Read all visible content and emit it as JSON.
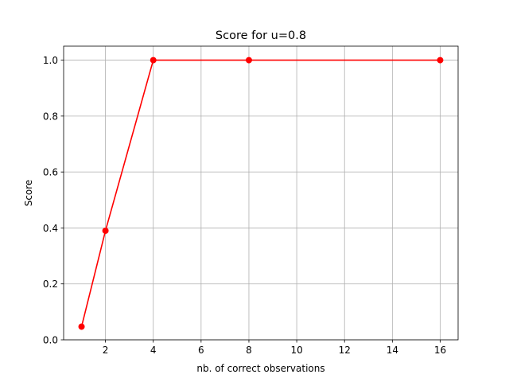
{
  "chart_data": {
    "type": "line",
    "title": "Score for u=0.8",
    "xlabel": "nb. of correct observations",
    "ylabel": "Score",
    "xlim": [
      0.25,
      16.75
    ],
    "ylim": [
      0.0,
      1.05
    ],
    "xticks": [
      2,
      4,
      6,
      8,
      10,
      12,
      14,
      16
    ],
    "xtick_labels": [
      "2",
      "4",
      "6",
      "8",
      "10",
      "12",
      "14",
      "16"
    ],
    "yticks": [
      0.0,
      0.2,
      0.4,
      0.6,
      0.8,
      1.0
    ],
    "ytick_labels": [
      "0.0",
      "0.2",
      "0.4",
      "0.6",
      "0.8",
      "1.0"
    ],
    "grid": true,
    "series": [
      {
        "name": "score",
        "color": "#ff0000",
        "marker": "circle",
        "x": [
          1,
          2,
          4,
          8,
          16
        ],
        "y": [
          0.047,
          0.39,
          1.0,
          1.0,
          1.0
        ]
      }
    ]
  }
}
